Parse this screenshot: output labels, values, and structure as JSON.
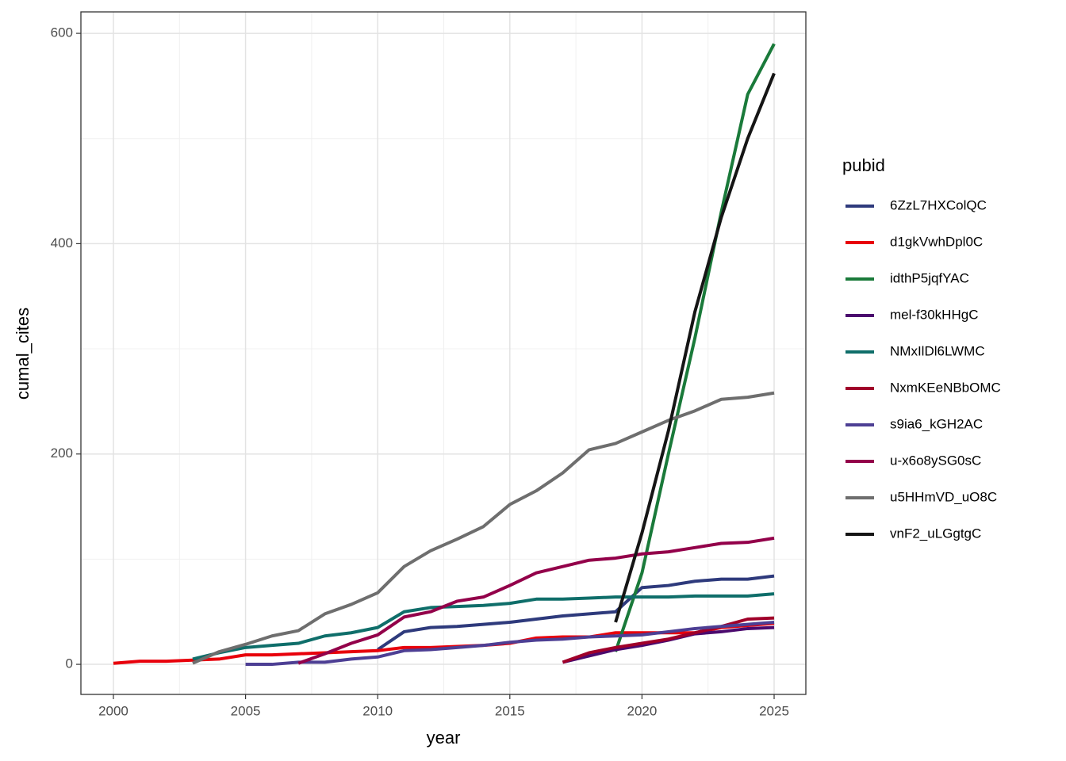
{
  "chart_data": {
    "type": "line",
    "x_label": "year",
    "y_label": "cumal_cites",
    "legend_title": "pubid",
    "legend_position": "right",
    "grid": true,
    "x": [
      2000,
      2001,
      2002,
      2003,
      2004,
      2005,
      2006,
      2007,
      2008,
      2009,
      2010,
      2011,
      2012,
      2013,
      2014,
      2015,
      2016,
      2017,
      2018,
      2019,
      2020,
      2021,
      2022,
      2023,
      2024,
      2025
    ],
    "xlim": [
      1998.77,
      2026.2
    ],
    "xticks": [
      2000,
      2005,
      2010,
      2015,
      2020,
      2025
    ],
    "ylim": [
      -28.6,
      620.4
    ],
    "yticks": [
      0,
      200,
      400,
      600
    ],
    "series": [
      {
        "name": "6ZzL7HXColQC",
        "color": "#2e3a7c",
        "values": [
          null,
          null,
          null,
          null,
          null,
          null,
          null,
          null,
          null,
          null,
          14,
          31,
          35,
          36,
          38,
          40,
          43,
          46,
          48,
          50,
          73,
          75,
          79,
          81,
          81,
          84
        ]
      },
      {
        "name": "d1gkVwhDpl0C",
        "color": "#e8000b",
        "values": [
          1,
          3,
          3,
          4,
          5,
          9,
          9,
          10,
          11,
          12,
          13,
          16,
          16,
          17,
          18,
          20,
          25,
          26,
          26,
          30,
          30,
          30,
          30,
          35,
          37,
          39
        ]
      },
      {
        "name": "idthP5jqfYAC",
        "color": "#1a7a3a",
        "values": [
          null,
          null,
          null,
          null,
          null,
          null,
          null,
          null,
          null,
          null,
          null,
          null,
          null,
          null,
          null,
          null,
          null,
          null,
          null,
          12,
          87,
          200,
          310,
          430,
          542,
          590
        ]
      },
      {
        "name": "mel-f30kHHgC",
        "color": "#4b0a6e",
        "values": [
          null,
          null,
          null,
          null,
          null,
          null,
          null,
          null,
          null,
          null,
          null,
          null,
          null,
          null,
          null,
          null,
          null,
          2,
          8,
          14,
          18,
          23,
          29,
          31,
          34,
          35
        ]
      },
      {
        "name": "NMxIlDl6LWMC",
        "color": "#0f6e6a",
        "values": [
          null,
          null,
          null,
          5,
          11,
          16,
          18,
          20,
          27,
          30,
          35,
          50,
          54,
          55,
          56,
          58,
          62,
          62,
          63,
          64,
          64,
          64,
          65,
          65,
          65,
          67
        ]
      },
      {
        "name": "NxmKEeNBbOMC",
        "color": "#a0002a",
        "values": [
          null,
          null,
          null,
          null,
          null,
          null,
          null,
          null,
          null,
          null,
          null,
          null,
          null,
          null,
          null,
          null,
          null,
          2,
          11,
          16,
          20,
          24,
          30,
          36,
          43,
          44
        ]
      },
      {
        "name": "s9ia6_kGH2AC",
        "color": "#4d3f94",
        "values": [
          null,
          null,
          null,
          null,
          null,
          0,
          0,
          2,
          2,
          5,
          7,
          13,
          14,
          16,
          18,
          21,
          23,
          24,
          26,
          27,
          28,
          31,
          34,
          36,
          38,
          40
        ]
      },
      {
        "name": "u-x6o8ySG0sC",
        "color": "#93004a",
        "values": [
          null,
          null,
          null,
          null,
          null,
          null,
          null,
          1,
          10,
          20,
          28,
          45,
          50,
          60,
          64,
          75,
          87,
          93,
          99,
          101,
          105,
          107,
          111,
          115,
          116,
          120
        ]
      },
      {
        "name": "u5HHmVD_uO8C",
        "color": "#6e6e6e",
        "values": [
          null,
          null,
          null,
          1,
          12,
          19,
          27,
          32,
          48,
          57,
          68,
          93,
          108,
          119,
          131,
          152,
          165,
          182,
          204,
          210,
          221,
          232,
          241,
          252,
          254,
          258
        ]
      },
      {
        "name": "vnF2_uLGgtgC",
        "color": "#151515",
        "values": [
          null,
          null,
          null,
          null,
          null,
          null,
          null,
          null,
          null,
          null,
          null,
          null,
          null,
          null,
          null,
          null,
          null,
          null,
          null,
          40,
          125,
          222,
          335,
          425,
          500,
          562
        ]
      }
    ]
  }
}
